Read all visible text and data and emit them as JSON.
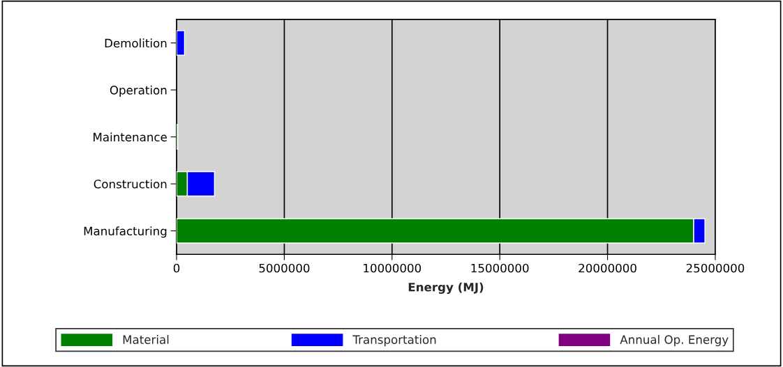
{
  "chart_data": {
    "type": "bar",
    "orientation": "horizontal",
    "stacked": true,
    "categories": [
      "Demolition",
      "Operation",
      "Maintenance",
      "Construction",
      "Manufacturing"
    ],
    "series": [
      {
        "name": "Material",
        "color": "#008000",
        "values": [
          null,
          null,
          60000,
          500000,
          24000000
        ]
      },
      {
        "name": "Transportation",
        "color": "#0000ff",
        "values": [
          370000,
          null,
          null,
          1260000,
          520000
        ]
      },
      {
        "name": "Annual Op. Energy",
        "color": "#800080",
        "values": [
          null,
          null,
          null,
          null,
          null
        ]
      }
    ],
    "xlabel": "Energy (MJ)",
    "xlim": [
      0,
      25000000
    ],
    "xticks": [
      0,
      5000000,
      10000000,
      15000000,
      20000000,
      25000000
    ],
    "grid": "x",
    "legend": "bottom"
  }
}
